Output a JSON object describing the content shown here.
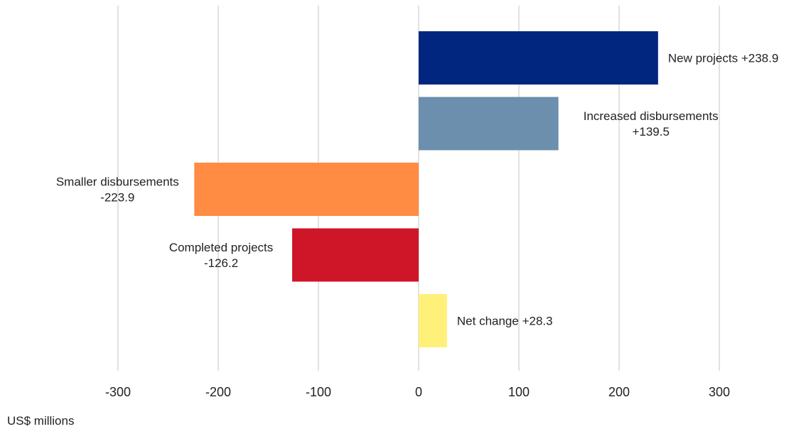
{
  "chart_data": {
    "type": "bar",
    "orientation": "horizontal",
    "categories": [
      "New projects",
      "Increased disbursements",
      "Smaller disbursements",
      "Completed projects",
      "Net change"
    ],
    "values": [
      238.9,
      139.5,
      -223.9,
      -126.2,
      28.3
    ],
    "labels": [
      [
        "New projects  +238.9"
      ],
      [
        "Increased disbursements",
        "+139.5"
      ],
      [
        "Smaller disbursements",
        "-223.9"
      ],
      [
        "Completed projects",
        "-126.2"
      ],
      [
        "Net change +28.3"
      ]
    ],
    "colors": [
      "#00267f",
      "#6b8fad",
      "#ff8c42",
      "#cf1528",
      "#fff07a"
    ],
    "xlim": [
      -300,
      300
    ],
    "xticks": [
      -300,
      -200,
      -100,
      0,
      100,
      200,
      300
    ],
    "xtick_labels": [
      "-300",
      "-200",
      "-100",
      "0",
      "100",
      "200",
      "300"
    ],
    "xlabel": "US$ millions",
    "grid": "vertical",
    "gridline_color": "#d9d9d9"
  }
}
